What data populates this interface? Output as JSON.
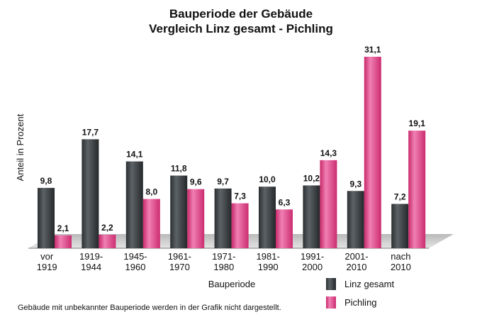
{
  "chart_data": {
    "type": "bar",
    "title": "Bauperiode der Gebäude",
    "subtitle": "Vergleich Linz gesamt - Pichling",
    "xlabel": "Bauperiode",
    "ylabel": "Anteil in Prozent",
    "categories": [
      [
        "vor",
        "1919"
      ],
      [
        "1919-",
        "1944"
      ],
      [
        "1945-",
        "1960"
      ],
      [
        "1961-",
        "1970"
      ],
      [
        "1971-",
        "1980"
      ],
      [
        "1981-",
        "1990"
      ],
      [
        "1991-",
        "2000"
      ],
      [
        "2001-",
        "2010"
      ],
      [
        "nach",
        "2010"
      ]
    ],
    "series": [
      {
        "name": "Linz gesamt",
        "values": [
          9.8,
          17.7,
          14.1,
          11.8,
          9.7,
          10.0,
          10.2,
          9.3,
          7.2
        ],
        "labels": [
          "9,8",
          "17,7",
          "14,1",
          "11,8",
          "9,7",
          "10,0",
          "10,2",
          "9,3",
          "7,2"
        ],
        "color": "#3b3f42"
      },
      {
        "name": "Pichling",
        "values": [
          2.1,
          2.2,
          8.0,
          9.6,
          7.3,
          6.3,
          14.3,
          31.1,
          19.1
        ],
        "labels": [
          "2,1",
          "2,2",
          "8,0",
          "9,6",
          "7,3",
          "6,3",
          "14,3",
          "31,1",
          "19,1"
        ],
        "color": "#d6387a"
      }
    ],
    "ylim": [
      0,
      31.1
    ],
    "grid": false,
    "legend_position": "bottom-right",
    "note": "Gebäude mit unbekannter Bauperiode werden in der Grafik nicht dargestellt."
  }
}
